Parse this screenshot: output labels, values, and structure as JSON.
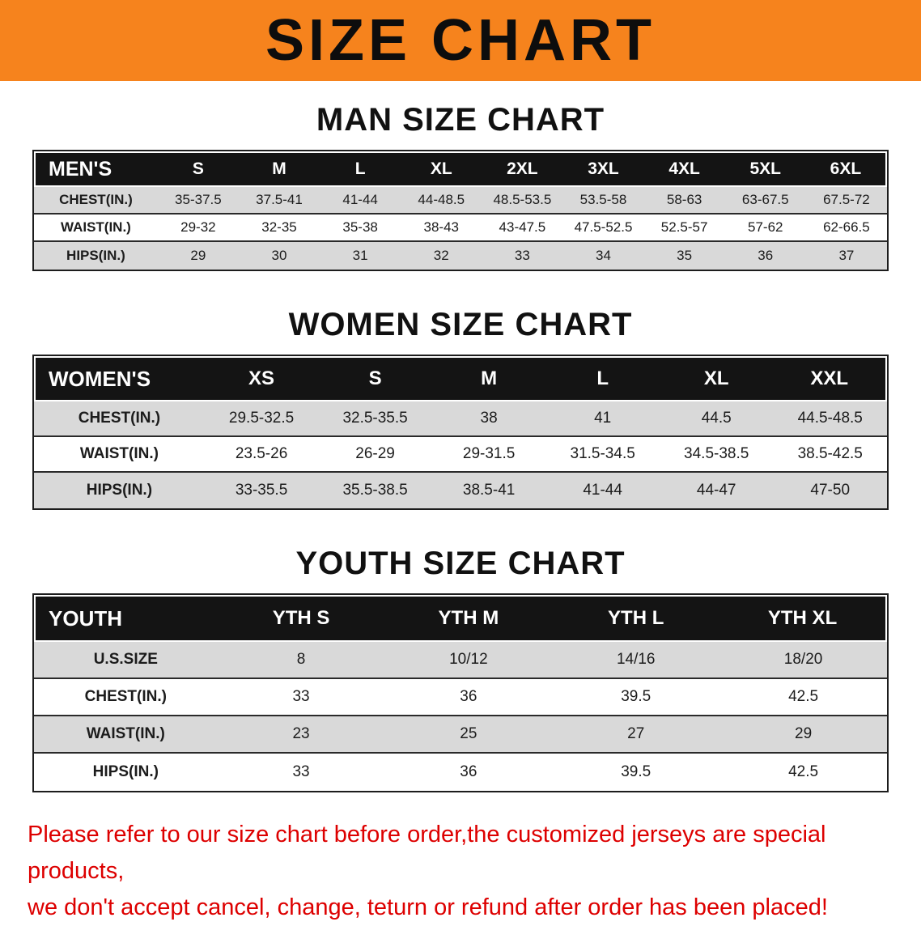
{
  "banner": {
    "title": "SIZE CHART"
  },
  "sections": [
    {
      "heading": "MAN SIZE CHART",
      "table": {
        "header": [
          "MEN'S",
          "S",
          "M",
          "L",
          "XL",
          "2XL",
          "3XL",
          "4XL",
          "5XL",
          "6XL"
        ],
        "rows": [
          {
            "label": "CHEST(IN.)",
            "values": [
              "35-37.5",
              "37.5-41",
              "41-44",
              "44-48.5",
              "48.5-53.5",
              "53.5-58",
              "58-63",
              "63-67.5",
              "67.5-72"
            ]
          },
          {
            "label": "WAIST(IN.)",
            "values": [
              "29-32",
              "32-35",
              "35-38",
              "38-43",
              "43-47.5",
              "47.5-52.5",
              "52.5-57",
              "57-62",
              "62-66.5"
            ]
          },
          {
            "label": "HIPS(IN.)",
            "values": [
              "29",
              "30",
              "31",
              "32",
              "33",
              "34",
              "35",
              "36",
              "37"
            ]
          }
        ]
      }
    },
    {
      "heading": "WOMEN SIZE CHART",
      "table": {
        "header": [
          "WOMEN'S",
          "XS",
          "S",
          "M",
          "L",
          "XL",
          "XXL"
        ],
        "rows": [
          {
            "label": "CHEST(IN.)",
            "values": [
              "29.5-32.5",
              "32.5-35.5",
              "38",
              "41",
              "44.5",
              "44.5-48.5"
            ]
          },
          {
            "label": "WAIST(IN.)",
            "values": [
              "23.5-26",
              "26-29",
              "29-31.5",
              "31.5-34.5",
              "34.5-38.5",
              "38.5-42.5"
            ]
          },
          {
            "label": "HIPS(IN.)",
            "values": [
              "33-35.5",
              "35.5-38.5",
              "38.5-41",
              "41-44",
              "44-47",
              "47-50"
            ]
          }
        ]
      }
    },
    {
      "heading": "YOUTH SIZE CHART",
      "table": {
        "header": [
          "YOUTH",
          "YTH S",
          "YTH M",
          "YTH L",
          "YTH XL"
        ],
        "rows": [
          {
            "label": "U.S.SIZE",
            "values": [
              "8",
              "10/12",
              "14/16",
              "18/20"
            ]
          },
          {
            "label": "CHEST(IN.)",
            "values": [
              "33",
              "36",
              "39.5",
              "42.5"
            ]
          },
          {
            "label": "WAIST(IN.)",
            "values": [
              "23",
              "25",
              "27",
              "29"
            ]
          },
          {
            "label": "HIPS(IN.)",
            "values": [
              "33",
              "36",
              "39.5",
              "42.5"
            ]
          }
        ]
      }
    }
  ],
  "footer": {
    "line1": "Please refer to our size chart before order,the customized jerseys are special products,",
    "line2": "we don't accept cancel, change, teturn or refund after order has been placed!"
  },
  "colors": {
    "banner_orange": "#f6831d",
    "table_header_black": "#141414",
    "row_gray": "#d9d9d9",
    "footer_red": "#dd0000"
  }
}
